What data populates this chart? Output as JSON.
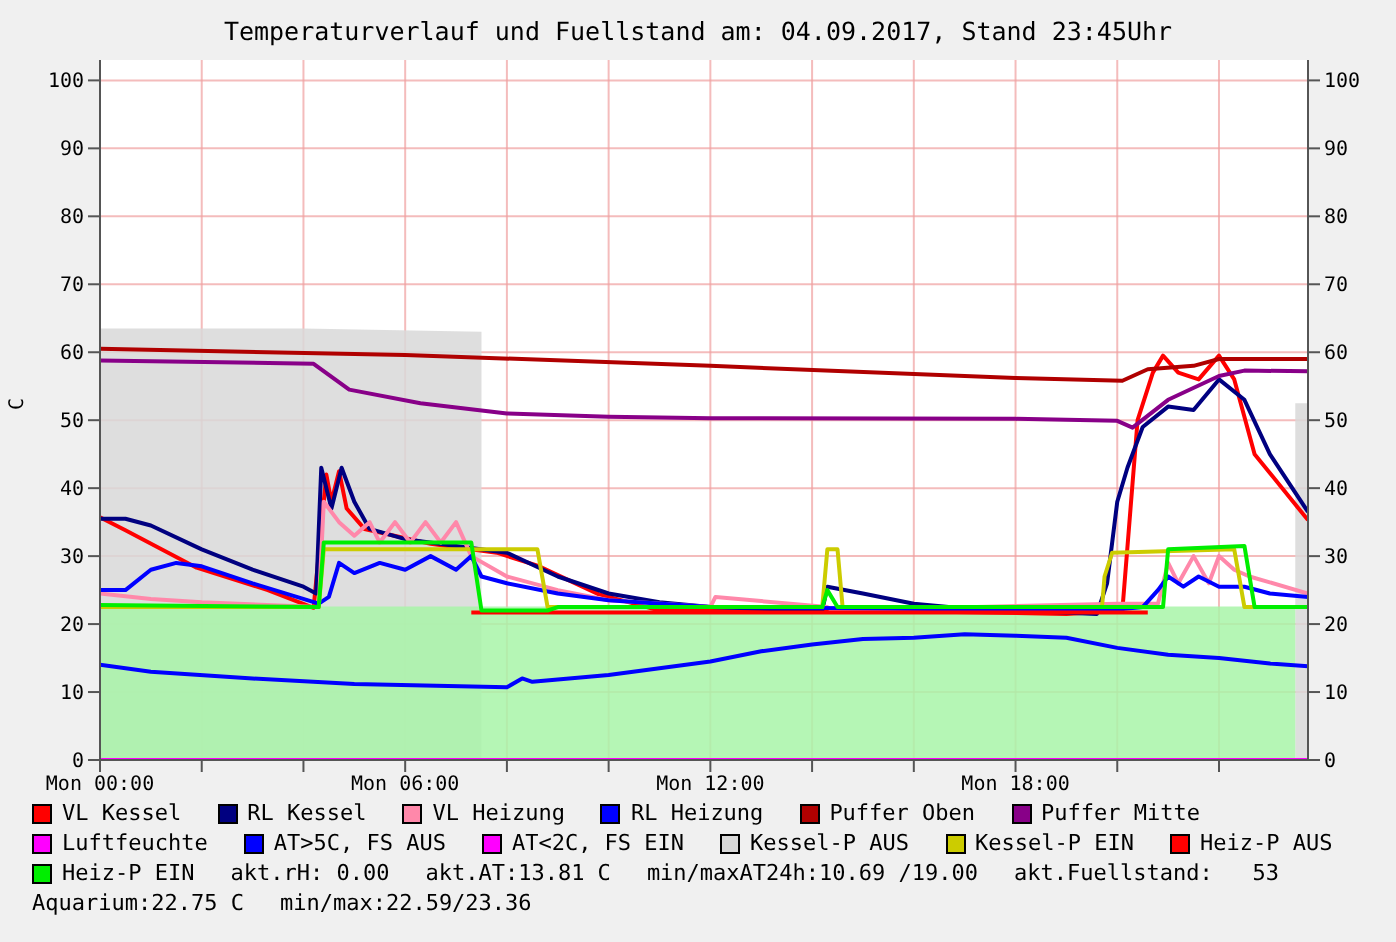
{
  "chart_data": {
    "type": "line",
    "title": "Temperaturverlauf und Fuellstand am: 04.09.2017, Stand 23:45Uhr",
    "ylabel": "C",
    "xlim": [
      "2017-09-04T00:00",
      "2017-09-04T23:45"
    ],
    "ylim": [
      0,
      103
    ],
    "y2lim": [
      0,
      103
    ],
    "xticks": [
      {
        "value": "2017-09-04T00:00",
        "label": "Mon 00:00"
      },
      {
        "value": "2017-09-04T02:00",
        "label": null
      },
      {
        "value": "2017-09-04T04:00",
        "label": null
      },
      {
        "value": "2017-09-04T06:00",
        "label": "Mon 06:00"
      },
      {
        "value": "2017-09-04T08:00",
        "label": null
      },
      {
        "value": "2017-09-04T10:00",
        "label": null
      },
      {
        "value": "2017-09-04T12:00",
        "label": "Mon 12:00"
      },
      {
        "value": "2017-09-04T14:00",
        "label": null
      },
      {
        "value": "2017-09-04T16:00",
        "label": null
      },
      {
        "value": "2017-09-04T18:00",
        "label": "Mon 18:00"
      },
      {
        "value": "2017-09-04T20:00",
        "label": null
      },
      {
        "value": "2017-09-04T22:00",
        "label": null
      }
    ],
    "yticks": [
      0,
      10,
      20,
      30,
      40,
      50,
      60,
      70,
      80,
      90,
      100
    ],
    "y2ticks": [
      0,
      10,
      20,
      30,
      40,
      50,
      60,
      70,
      80,
      90,
      100
    ],
    "grid": true,
    "legend": "bottom",
    "marker": "none",
    "series": [
      {
        "name": "VL Kessel",
        "color": "#ff0000",
        "x": [
          "2017-09-04T00:00",
          "2017-09-04T00:30",
          "2017-09-04T01:54",
          "2017-09-04T03:18",
          "2017-09-04T04:12",
          "2017-09-04T04:27",
          "2017-09-04T04:33",
          "2017-09-04T04:42",
          "2017-09-04T04:51",
          "2017-09-04T05:12",
          "2017-09-04T06:30",
          "2017-09-04T07:48",
          "2017-09-04T08:36",
          "2017-09-04T09:48",
          "2017-09-04T10:30",
          "2017-09-04T11:00",
          "2017-09-04T14:00",
          "2017-09-04T14:18",
          "2017-09-04T15:00",
          "2017-09-04T19:00",
          "2017-09-04T20:06",
          "2017-09-04T20:24",
          "2017-09-04T20:42",
          "2017-09-04T20:54",
          "2017-09-04T21:12",
          "2017-09-04T21:36",
          "2017-09-04T22:00",
          "2017-09-04T22:18",
          "2017-09-04T22:42",
          "2017-09-04T23:45"
        ],
        "values": [
          35.7,
          33.8,
          28.3,
          25,
          22.4,
          42,
          38,
          42.5,
          37,
          34,
          31.8,
          30.5,
          28.6,
          24.4,
          23,
          22,
          21.8,
          22,
          22,
          21.5,
          22,
          50,
          57,
          59.5,
          57,
          56,
          59.5,
          56,
          45,
          35.3
        ]
      },
      {
        "name": "RL Kessel",
        "color": "#000080",
        "x": [
          "2017-09-04T00:00",
          "2017-09-04T00:30",
          "2017-09-04T01:00",
          "2017-09-04T02:00",
          "2017-09-04T03:00",
          "2017-09-04T04:00",
          "2017-09-04T04:15",
          "2017-09-04T04:21",
          "2017-09-04T04:33",
          "2017-09-04T04:45",
          "2017-09-04T05:00",
          "2017-09-04T05:18",
          "2017-09-04T06:00",
          "2017-09-04T07:00",
          "2017-09-04T08:00",
          "2017-09-04T09:00",
          "2017-09-04T10:00",
          "2017-09-04T11:00",
          "2017-09-04T12:00",
          "2017-09-04T14:12",
          "2017-09-04T14:18",
          "2017-09-04T15:00",
          "2017-09-04T16:00",
          "2017-09-04T17:00",
          "2017-09-04T18:00",
          "2017-09-04T19:36",
          "2017-09-04T19:48",
          "2017-09-04T20:00",
          "2017-09-04T20:12",
          "2017-09-04T20:30",
          "2017-09-04T21:00",
          "2017-09-04T21:30",
          "2017-09-04T22:00",
          "2017-09-04T22:30",
          "2017-09-04T23:00",
          "2017-09-04T23:45"
        ],
        "values": [
          35.5,
          35.5,
          34.5,
          31,
          28,
          25.5,
          24.5,
          43,
          37,
          43,
          38,
          34,
          32.5,
          31.5,
          30.5,
          27,
          24.5,
          23.2,
          22.5,
          22,
          25.5,
          24.5,
          23,
          22.3,
          22,
          21.5,
          26,
          38,
          43,
          49,
          52,
          51.5,
          56,
          53,
          45,
          36.5
        ]
      },
      {
        "name": "VL Heizung",
        "color": "#ff88aa",
        "x": [
          "2017-09-04T00:00",
          "2017-09-04T01:00",
          "2017-09-04T02:00",
          "2017-09-04T04:18",
          "2017-09-04T04:24",
          "2017-09-04T04:42",
          "2017-09-04T05:00",
          "2017-09-04T05:18",
          "2017-09-04T05:30",
          "2017-09-04T05:48",
          "2017-09-04T06:06",
          "2017-09-04T06:24",
          "2017-09-04T06:42",
          "2017-09-04T07:00",
          "2017-09-04T07:18",
          "2017-09-04T08:00",
          "2017-09-04T09:00",
          "2017-09-04T10:00",
          "2017-09-04T12:00",
          "2017-09-04T12:06",
          "2017-09-04T14:18",
          "2017-09-04T14:24",
          "2017-09-04T20:00",
          "2017-09-04T20:48",
          "2017-09-04T21:00",
          "2017-09-04T21:12",
          "2017-09-04T21:30",
          "2017-09-04T21:48",
          "2017-09-04T22:00",
          "2017-09-04T22:18",
          "2017-09-04T22:36",
          "2017-09-04T23:45"
        ],
        "values": [
          24.5,
          23.7,
          23.2,
          22.5,
          38,
          35,
          33,
          35,
          32,
          35,
          32,
          35,
          32,
          35,
          30,
          27,
          25,
          23.5,
          22.5,
          24,
          22.5,
          22,
          23,
          23,
          29,
          26,
          30,
          26,
          30,
          28,
          27,
          24.5
        ]
      },
      {
        "name": "RL Heizung",
        "color": "#0000ff",
        "x": [
          "2017-09-04T00:00",
          "2017-09-04T00:30",
          "2017-09-04T01:00",
          "2017-09-04T01:30",
          "2017-09-04T02:00",
          "2017-09-04T03:00",
          "2017-09-04T04:18",
          "2017-09-04T04:30",
          "2017-09-04T04:42",
          "2017-09-04T05:00",
          "2017-09-04T05:30",
          "2017-09-04T06:00",
          "2017-09-04T06:30",
          "2017-09-04T07:00",
          "2017-09-04T07:18",
          "2017-09-04T07:30",
          "2017-09-04T08:00",
          "2017-09-04T09:00",
          "2017-09-04T10:00",
          "2017-09-04T12:00",
          "2017-09-04T19:48",
          "2017-09-04T20:30",
          "2017-09-04T20:48",
          "2017-09-04T21:00",
          "2017-09-04T21:18",
          "2017-09-04T21:36",
          "2017-09-04T22:00",
          "2017-09-04T22:30",
          "2017-09-04T23:00",
          "2017-09-04T23:45"
        ],
        "values": [
          25,
          25,
          28,
          29,
          28.5,
          26,
          23,
          24,
          29,
          27.5,
          29,
          28,
          30,
          28,
          30,
          27,
          26,
          24.5,
          23.5,
          22.5,
          22,
          22.5,
          25,
          27,
          25.5,
          27,
          25.5,
          25.5,
          24.5,
          24
        ]
      },
      {
        "name": "Puffer Oben",
        "color": "#b00000",
        "x": [
          "2017-09-04T00:00",
          "2017-09-04T06:00",
          "2017-09-04T12:00",
          "2017-09-04T18:00",
          "2017-09-04T20:06",
          "2017-09-04T20:36",
          "2017-09-04T21:30",
          "2017-09-04T22:00",
          "2017-09-04T23:45"
        ],
        "values": [
          60.5,
          59.6,
          58,
          56.2,
          55.8,
          57.5,
          58,
          59,
          59
        ]
      },
      {
        "name": "Puffer Mitte",
        "color": "#880088",
        "x": [
          "2017-09-04T00:00",
          "2017-09-04T04:12",
          "2017-09-04T04:54",
          "2017-09-04T06:18",
          "2017-09-04T08:00",
          "2017-09-04T10:00",
          "2017-09-04T12:00",
          "2017-09-04T18:00",
          "2017-09-04T20:00",
          "2017-09-04T20:18",
          "2017-09-04T21:00",
          "2017-09-04T22:00",
          "2017-09-04T22:30",
          "2017-09-04T23:45"
        ],
        "values": [
          58.8,
          58.3,
          54.5,
          52.5,
          51,
          50.5,
          50.3,
          50.2,
          49.9,
          48.9,
          53,
          56.5,
          57.3,
          57.2
        ]
      },
      {
        "name": "Luftfeuchte",
        "color": "#ff00ff",
        "x": [
          "2017-09-04T00:00",
          "2017-09-04T23:45"
        ],
        "values": [
          0,
          0
        ]
      },
      {
        "name": "AT>5C, FS AUS",
        "color": "#0000ff",
        "x": [
          "2017-09-04T00:00",
          "2017-09-04T01:00",
          "2017-09-04T03:00",
          "2017-09-04T05:00",
          "2017-09-04T08:00",
          "2017-09-04T08:18",
          "2017-09-04T08:30",
          "2017-09-04T10:00",
          "2017-09-04T12:00",
          "2017-09-04T13:00",
          "2017-09-04T14:00",
          "2017-09-04T15:00",
          "2017-09-04T16:00",
          "2017-09-04T17:00",
          "2017-09-04T18:00",
          "2017-09-04T19:00",
          "2017-09-04T20:00",
          "2017-09-04T21:00",
          "2017-09-04T22:00",
          "2017-09-04T23:00",
          "2017-09-04T23:45"
        ],
        "values": [
          14,
          13,
          12,
          11.2,
          10.7,
          12,
          11.5,
          12.5,
          14.5,
          16,
          17,
          17.8,
          18,
          18.5,
          18.3,
          18,
          16.5,
          15.5,
          15,
          14.2,
          13.8
        ]
      },
      {
        "name": "AT<2C, FS EIN",
        "color": "#ff00ff"
      },
      {
        "name": "Kessel-P AUS",
        "type": "area",
        "color": "#d8d8d8",
        "x": [
          "2017-09-04T00:00",
          "2017-09-04T04:00",
          "2017-09-04T07:30",
          "2017-09-04T07:33",
          "2017-09-04T23:27",
          "2017-09-04T23:30",
          "2017-09-04T23:45"
        ],
        "values": [
          63.5,
          63.5,
          63,
          null,
          null,
          52.5,
          52.5
        ]
      },
      {
        "name": "Kessel-P EIN",
        "color": "#cccc00",
        "x": [
          "2017-09-04T00:00",
          "2017-09-04T04:18",
          "2017-09-04T04:24",
          "2017-09-04T08:36",
          "2017-09-04T08:48",
          "2017-09-04T14:12",
          "2017-09-04T14:18",
          "2017-09-04T14:30",
          "2017-09-04T14:36",
          "2017-09-04T19:42",
          "2017-09-04T19:45",
          "2017-09-04T19:54",
          "2017-09-04T22:18",
          "2017-09-04T22:30",
          "2017-09-04T23:45"
        ],
        "values": [
          22.5,
          22.5,
          31,
          31,
          22.5,
          22.5,
          31,
          31,
          22.5,
          22.5,
          27,
          30.5,
          31,
          22.5,
          22.5
        ]
      },
      {
        "name": "Heiz-P AUS",
        "color": "#ff0000",
        "x": [
          "2017-09-04T07:18",
          "2017-09-04T20:36"
        ],
        "values": [
          21.7,
          21.7
        ]
      },
      {
        "name": "Heiz-P EIN",
        "color": "#00ee00",
        "x": [
          "2017-09-04T00:00",
          "2017-09-04T04:18",
          "2017-09-04T04:24",
          "2017-09-04T07:18",
          "2017-09-04T07:30",
          "2017-09-04T08:48",
          "2017-09-04T09:00",
          "2017-09-04T14:12",
          "2017-09-04T14:18",
          "2017-09-04T14:30",
          "2017-09-04T20:54",
          "2017-09-04T21:00",
          "2017-09-04T22:30",
          "2017-09-04T22:42",
          "2017-09-04T23:45"
        ],
        "values": [
          22.8,
          22.5,
          32,
          32,
          22,
          22,
          22.5,
          22.5,
          25,
          22.5,
          22.5,
          31,
          31.5,
          22.5,
          22.5
        ]
      },
      {
        "type": "area",
        "color": "#a8f5a8",
        "x": [
          "2017-09-04T00:00",
          "2017-09-04T23:30"
        ],
        "values": [
          22.6,
          22.6
        ]
      }
    ],
    "annotations": [
      "akt.rH: 0.00",
      "akt.AT:13.81 C",
      "min/maxAT24h:10.69 /19.00",
      "akt.Fuellstand:   53",
      "Aquarium:22.75 C",
      "min/max:22.59/23.36"
    ]
  }
}
